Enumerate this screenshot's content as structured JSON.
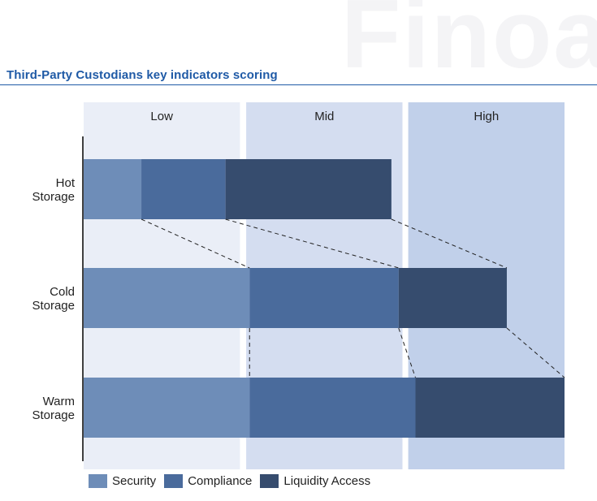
{
  "watermark": "Finoa",
  "title": "Third-Party Custodians key indicators scoring",
  "colors": {
    "security": "#6e8db8",
    "compliance": "#4a6b9c",
    "liquidity": "#364c6e",
    "band_low": "#eaeef7",
    "band_mid": "#d4ddf0",
    "band_high": "#c1d0ea",
    "axis": "#000000",
    "connector": "#222222"
  },
  "chart_data": {
    "type": "bar",
    "orientation": "horizontal",
    "stacked": true,
    "xlim": [
      0,
      100
    ],
    "bands": [
      {
        "label": "Low",
        "from": 0,
        "to": 32.5
      },
      {
        "label": "Mid",
        "from": 33.8,
        "to": 66.3
      },
      {
        "label": "High",
        "from": 67.5,
        "to": 100
      }
    ],
    "categories": [
      {
        "line1": "Hot",
        "line2": "Storage"
      },
      {
        "line1": "Cold",
        "line2": "Storage"
      },
      {
        "line1": "Warm",
        "line2": "Storage"
      }
    ],
    "series": [
      {
        "name": "Security",
        "color_key": "security",
        "values": [
          12,
          34.5,
          34.5
        ]
      },
      {
        "name": "Compliance",
        "color_key": "compliance",
        "values": [
          17.5,
          31,
          34.5
        ]
      },
      {
        "name": "Liquidity Access",
        "color_key": "liquidity",
        "values": [
          34.5,
          22.5,
          31
        ]
      }
    ],
    "connectors": "dashed lines linking segment boundaries of consecutive bars",
    "legend_position": "bottom-left"
  }
}
